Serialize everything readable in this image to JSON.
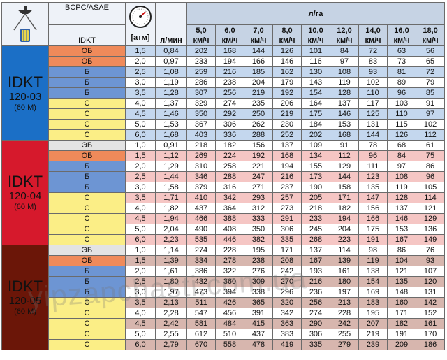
{
  "header": {
    "bcpc_label": "BCPC/ASAE",
    "idkt_label": "IDKT",
    "pressure_unit": "[атм]",
    "flow_unit": "л/мин",
    "rate_unit": "л/га",
    "speeds": [
      {
        "value": "5,0",
        "unit": "км/ч"
      },
      {
        "value": "6,0",
        "unit": "км/ч"
      },
      {
        "value": "7,0",
        "unit": "км/ч"
      },
      {
        "value": "8,0",
        "unit": "км/ч"
      },
      {
        "value": "10,0",
        "unit": "км/ч"
      },
      {
        "value": "12,0",
        "unit": "км/ч"
      },
      {
        "value": "14,0",
        "unit": "км/ч"
      },
      {
        "value": "16,0",
        "unit": "км/ч"
      },
      {
        "value": "18,0",
        "unit": "км/ч"
      }
    ]
  },
  "colors": {
    "ЭБ": "#e3e3e3",
    "ОБ": "#ef8a5a",
    "Б": "#6d95d3",
    "С": "#fbee86",
    "group_blue": "#1b6fc6",
    "group_red": "#d6192c",
    "group_brown": "#6b1608"
  },
  "groups": [
    {
      "name": "IDKT",
      "model": "120-03",
      "spray": "(60 M)",
      "color": "#1b6fc6",
      "band": "blue",
      "rows": [
        {
          "cls": "ОБ",
          "p": "1,5",
          "q": "0,84",
          "v": [
            "202",
            "168",
            "144",
            "126",
            "101",
            "84",
            "72",
            "63",
            "56"
          ]
        },
        {
          "cls": "ОБ",
          "p": "2,0",
          "q": "0,97",
          "v": [
            "233",
            "194",
            "166",
            "146",
            "116",
            "97",
            "83",
            "73",
            "65"
          ]
        },
        {
          "cls": "Б",
          "p": "2,5",
          "q": "1,08",
          "v": [
            "259",
            "216",
            "185",
            "162",
            "130",
            "108",
            "93",
            "81",
            "72"
          ]
        },
        {
          "cls": "Б",
          "p": "3,0",
          "q": "1,19",
          "v": [
            "286",
            "238",
            "204",
            "179",
            "143",
            "119",
            "102",
            "89",
            "79"
          ]
        },
        {
          "cls": "Б",
          "p": "3,5",
          "q": "1,28",
          "v": [
            "307",
            "256",
            "219",
            "192",
            "154",
            "128",
            "110",
            "96",
            "85"
          ]
        },
        {
          "cls": "С",
          "p": "4,0",
          "q": "1,37",
          "v": [
            "329",
            "274",
            "235",
            "206",
            "164",
            "137",
            "117",
            "103",
            "91"
          ]
        },
        {
          "cls": "С",
          "p": "4,5",
          "q": "1,46",
          "v": [
            "350",
            "292",
            "250",
            "219",
            "175",
            "146",
            "125",
            "110",
            "97"
          ]
        },
        {
          "cls": "С",
          "p": "5,0",
          "q": "1,53",
          "v": [
            "367",
            "306",
            "262",
            "230",
            "184",
            "153",
            "131",
            "115",
            "102"
          ]
        },
        {
          "cls": "С",
          "p": "6,0",
          "q": "1,68",
          "v": [
            "403",
            "336",
            "288",
            "252",
            "202",
            "168",
            "144",
            "126",
            "112"
          ]
        }
      ]
    },
    {
      "name": "IDKT",
      "model": "120-04",
      "spray": "(60 M)",
      "color": "#d6192c",
      "band": "red",
      "rows": [
        {
          "cls": "ЭБ",
          "p": "1,0",
          "q": "0,91",
          "v": [
            "218",
            "182",
            "156",
            "137",
            "109",
            "91",
            "78",
            "68",
            "61"
          ]
        },
        {
          "cls": "ОБ",
          "p": "1,5",
          "q": "1,12",
          "v": [
            "269",
            "224",
            "192",
            "168",
            "134",
            "112",
            "96",
            "84",
            "75"
          ]
        },
        {
          "cls": "Б",
          "p": "2,0",
          "q": "1,29",
          "v": [
            "310",
            "258",
            "221",
            "194",
            "155",
            "129",
            "111",
            "97",
            "86"
          ]
        },
        {
          "cls": "Б",
          "p": "2,5",
          "q": "1,44",
          "v": [
            "346",
            "288",
            "247",
            "216",
            "173",
            "144",
            "123",
            "108",
            "96"
          ]
        },
        {
          "cls": "Б",
          "p": "3,0",
          "q": "1,58",
          "v": [
            "379",
            "316",
            "271",
            "237",
            "190",
            "158",
            "135",
            "119",
            "105"
          ]
        },
        {
          "cls": "С",
          "p": "3,5",
          "q": "1,71",
          "v": [
            "410",
            "342",
            "293",
            "257",
            "205",
            "171",
            "147",
            "128",
            "114"
          ]
        },
        {
          "cls": "С",
          "p": "4,0",
          "q": "1,82",
          "v": [
            "437",
            "364",
            "312",
            "273",
            "218",
            "182",
            "156",
            "137",
            "121"
          ]
        },
        {
          "cls": "С",
          "p": "4,5",
          "q": "1,94",
          "v": [
            "466",
            "388",
            "333",
            "291",
            "233",
            "194",
            "166",
            "146",
            "129"
          ]
        },
        {
          "cls": "С",
          "p": "5,0",
          "q": "2,04",
          "v": [
            "490",
            "408",
            "350",
            "306",
            "245",
            "204",
            "175",
            "153",
            "136"
          ]
        },
        {
          "cls": "С",
          "p": "6,0",
          "q": "2,23",
          "v": [
            "535",
            "446",
            "382",
            "335",
            "268",
            "223",
            "191",
            "167",
            "149"
          ]
        }
      ]
    },
    {
      "name": "IDKT",
      "model": "120-05",
      "spray": "(60 M)",
      "color": "#6b1608",
      "band": "brown",
      "rows": [
        {
          "cls": "ЭБ",
          "p": "1,0",
          "q": "1,14",
          "v": [
            "274",
            "228",
            "195",
            "171",
            "137",
            "114",
            "98",
            "86",
            "76"
          ]
        },
        {
          "cls": "ОБ",
          "p": "1,5",
          "q": "1,39",
          "v": [
            "334",
            "278",
            "238",
            "208",
            "167",
            "139",
            "119",
            "104",
            "93"
          ]
        },
        {
          "cls": "Б",
          "p": "2,0",
          "q": "1,61",
          "v": [
            "386",
            "322",
            "276",
            "242",
            "193",
            "161",
            "138",
            "121",
            "107"
          ]
        },
        {
          "cls": "Б",
          "p": "2,5",
          "q": "1,80",
          "v": [
            "432",
            "360",
            "309",
            "270",
            "216",
            "180",
            "154",
            "135",
            "120"
          ]
        },
        {
          "cls": "Б",
          "p": "3,0",
          "q": "1,97",
          "v": [
            "473",
            "394",
            "338",
            "296",
            "236",
            "197",
            "169",
            "148",
            "131"
          ]
        },
        {
          "cls": "С",
          "p": "3,5",
          "q": "2,13",
          "v": [
            "511",
            "426",
            "365",
            "320",
            "256",
            "213",
            "183",
            "160",
            "142"
          ]
        },
        {
          "cls": "С",
          "p": "4,0",
          "q": "2,28",
          "v": [
            "547",
            "456",
            "391",
            "342",
            "274",
            "228",
            "195",
            "171",
            "152"
          ]
        },
        {
          "cls": "С",
          "p": "4,5",
          "q": "2,42",
          "v": [
            "581",
            "484",
            "415",
            "363",
            "290",
            "242",
            "207",
            "182",
            "161"
          ]
        },
        {
          "cls": "С",
          "p": "5,0",
          "q": "2,55",
          "v": [
            "612",
            "510",
            "437",
            "383",
            "306",
            "255",
            "219",
            "191",
            "170"
          ]
        },
        {
          "cls": "С",
          "p": "6,0",
          "q": "2,79",
          "v": [
            "670",
            "558",
            "478",
            "419",
            "335",
            "279",
            "239",
            "209",
            "186"
          ]
        }
      ]
    }
  ],
  "watermark": "yipzapchasti.com.ua"
}
